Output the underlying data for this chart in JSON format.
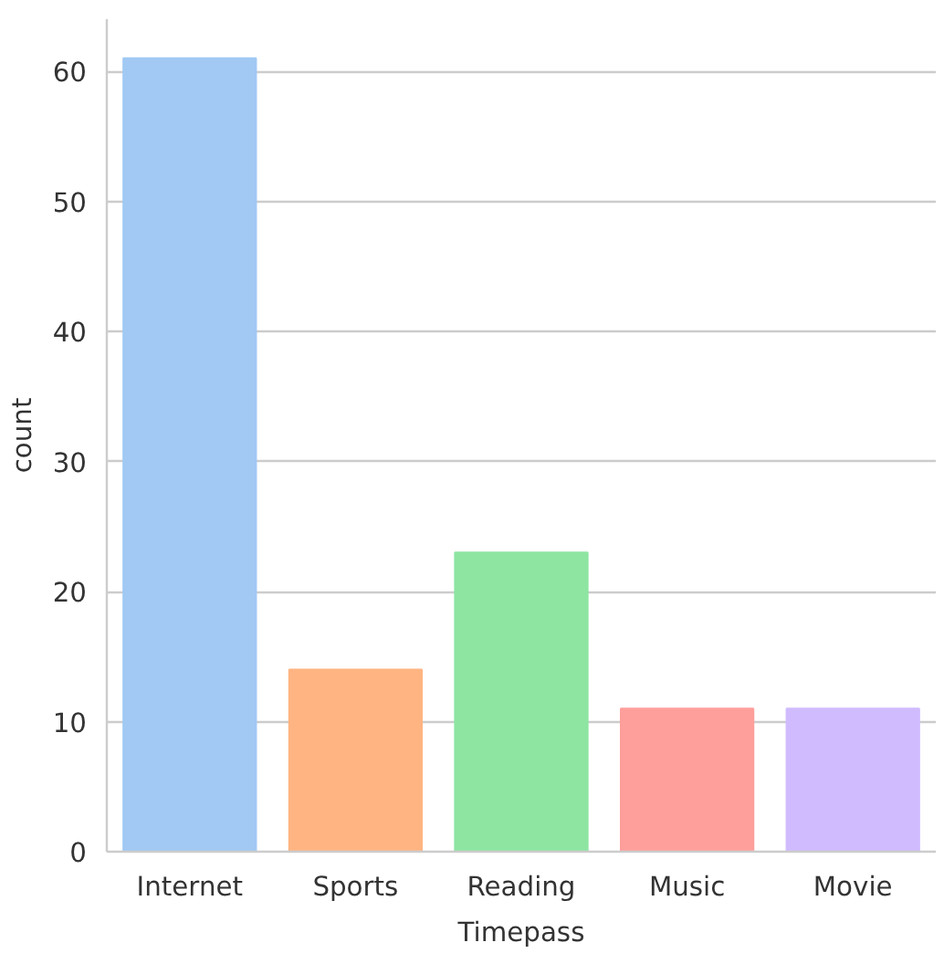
{
  "chart_data": {
    "type": "bar",
    "xlabel": "Timepass",
    "ylabel": "count",
    "categories": [
      "Internet",
      "Sports",
      "Reading",
      "Music",
      "Movie"
    ],
    "values": [
      61,
      14,
      23,
      11,
      11
    ],
    "colors": [
      "#a1c9f4",
      "#ffb482",
      "#8de5a1",
      "#ff9f9b",
      "#d0bbff"
    ],
    "ylim": [
      0,
      64
    ],
    "yticks": [
      0,
      10,
      20,
      30,
      40,
      50,
      60
    ],
    "grid": "y"
  }
}
